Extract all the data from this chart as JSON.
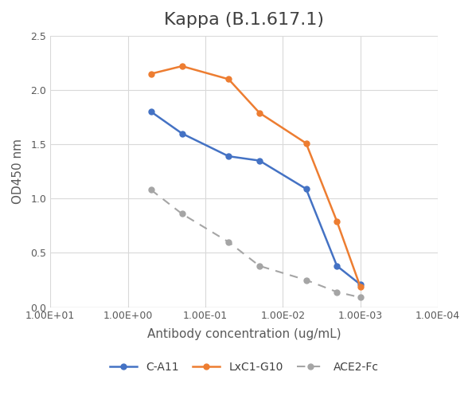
{
  "title": "Kappa (B.1.617.1)",
  "xlabel": "Antibody concentration (ug/mL)",
  "ylabel": "OD450 nm",
  "x_values": [
    0.5,
    0.2,
    0.05,
    0.02,
    0.005,
    0.002,
    0.001
  ],
  "CA11_y": [
    1.8,
    1.6,
    1.39,
    1.35,
    1.09,
    0.38,
    0.21
  ],
  "LxC1G10_y": [
    2.15,
    2.22,
    2.1,
    1.79,
    1.51,
    0.79,
    0.19
  ],
  "ACE2Fc_x": [
    0.5,
    0.2,
    0.05,
    0.02,
    0.005,
    0.002,
    0.001
  ],
  "ACE2Fc_y": [
    1.08,
    0.86,
    0.6,
    0.38,
    0.25,
    0.14,
    0.09
  ],
  "CA11_color": "#4472C4",
  "LxC1G10_color": "#ED7D31",
  "ACE2Fc_color": "#A5A5A5",
  "ylim": [
    0,
    2.5
  ],
  "xlim_left": 10.0,
  "xlim_right": 0.0001,
  "title_fontsize": 16,
  "label_fontsize": 11,
  "tick_fontsize": 9,
  "legend_fontsize": 10,
  "background_color": "#FFFFFF",
  "grid_color": "#D9D9D9",
  "xtick_positions": [
    10,
    1,
    0.1,
    0.01,
    0.001,
    0.0001
  ]
}
